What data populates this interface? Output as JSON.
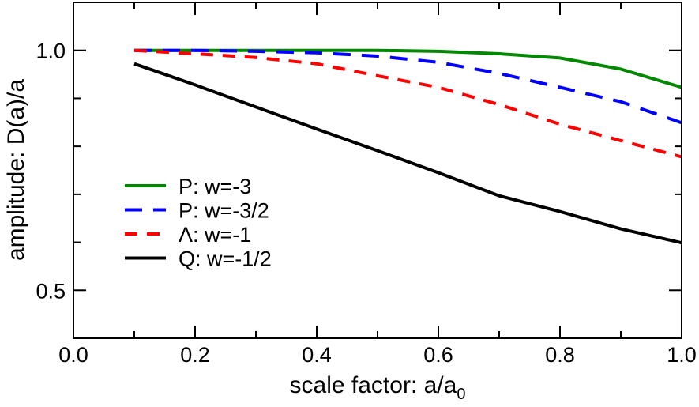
{
  "chart_data": {
    "type": "line",
    "title": "",
    "xlabel": "scale factor: a/a",
    "xlabel_subscript": "0",
    "ylabel": "amplitude: D(a)/a",
    "xlim": [
      0.0,
      1.0
    ],
    "ylim": [
      0.4,
      1.1
    ],
    "x_ticks": [
      "0.0",
      "0.2",
      "0.4",
      "0.6",
      "0.8",
      "1.0"
    ],
    "y_ticks": [
      "0.5",
      "1.0"
    ],
    "grid": false,
    "legend_placement": "center-left",
    "x": [
      0.1,
      0.2,
      0.3,
      0.4,
      0.5,
      0.6,
      0.7,
      0.8,
      0.9,
      1.0
    ],
    "series": [
      {
        "name": "P: w=-3",
        "color": "#008800",
        "style": "solid",
        "values": [
          1.0,
          1.0,
          1.0,
          1.0,
          1.0,
          0.998,
          0.993,
          0.984,
          0.961,
          0.923
        ]
      },
      {
        "name": "P: w=-3/2",
        "color": "#0000ff",
        "style": "long-dash",
        "values": [
          1.0,
          1.0,
          0.998,
          0.995,
          0.988,
          0.975,
          0.952,
          0.923,
          0.893,
          0.849
        ]
      },
      {
        "name": "Λ: w=-1",
        "color": "#ff0000",
        "style": "dash",
        "values": [
          1.0,
          0.993,
          0.985,
          0.972,
          0.947,
          0.923,
          0.887,
          0.846,
          0.812,
          0.778
        ]
      },
      {
        "name": "Q: w=-1/2",
        "color": "#000000",
        "style": "solid",
        "values": [
          0.972,
          0.928,
          0.882,
          0.836,
          0.791,
          0.745,
          0.697,
          0.664,
          0.628,
          0.599
        ]
      }
    ]
  }
}
